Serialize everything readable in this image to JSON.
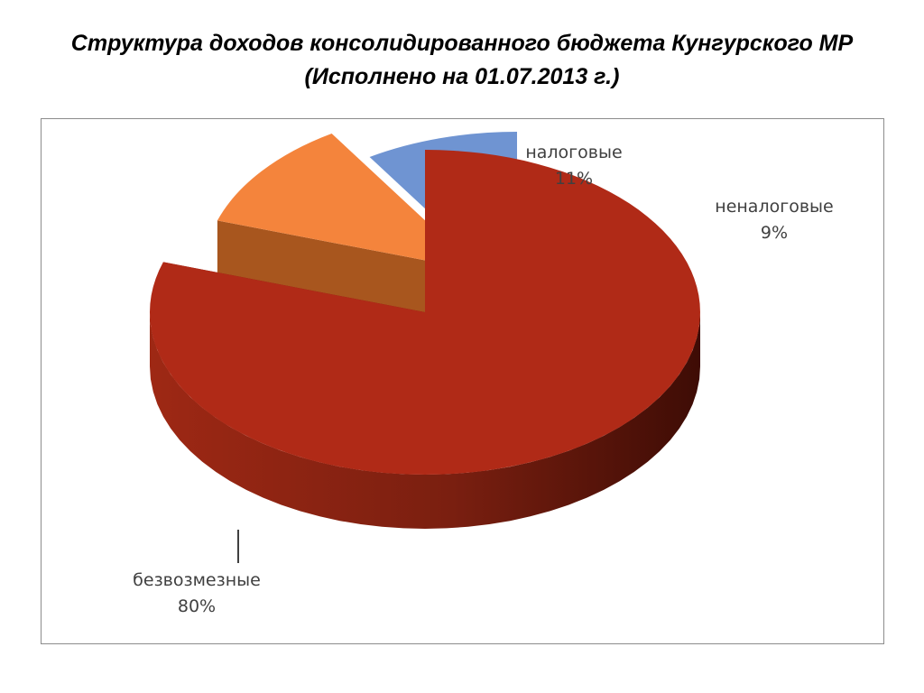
{
  "title": {
    "line1": "Структура доходов консолидированного бюджета Кунгурского МР",
    "line2": "(Исполнено на 01.07.2013 г.)"
  },
  "chart_data": {
    "type": "pie",
    "style": "3d-exploded",
    "legend": "none",
    "categories": [
      "безвозмезные",
      "налоговые",
      "неналоговые"
    ],
    "values": [
      80,
      11,
      9
    ],
    "data_labels": [
      "80%",
      "11%",
      "9%"
    ],
    "colors": [
      "#B02A17",
      "#F4843C",
      "#6F94D2"
    ],
    "side_colors": [
      "#7A1E10",
      "#A8561E",
      "#2F3E5E"
    ]
  }
}
